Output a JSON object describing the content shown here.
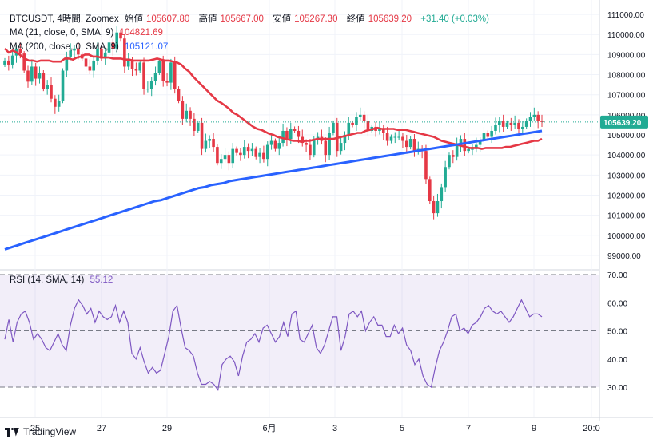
{
  "header": {
    "symbol": "BTCUSDT, 4時間, Zoomex",
    "open_label": "始値",
    "open": "105607.80",
    "high_label": "高値",
    "high": "105667.00",
    "low_label": "安値",
    "low": "105267.30",
    "close_label": "終値",
    "close": "105639.20",
    "change": "+31.40 (+0.03%)"
  },
  "ma21": {
    "label": "MA (21, close, 0, SMA, 9)",
    "value": "104821.69"
  },
  "ma200": {
    "label": "MA (200, close, 0, SMA, 9)",
    "value": "105121.07"
  },
  "rsi": {
    "label": "RSI (14, SMA, 14)",
    "value": "55.12"
  },
  "last_price": "105639.20",
  "footer": {
    "brand": "TradingView"
  },
  "colors": {
    "up": "#22ab94",
    "down": "#e53845",
    "ma21": "#e53845",
    "ma200": "#2962ff",
    "rsi": "#7e57c2"
  },
  "chart_data": [
    {
      "type": "candlestick",
      "price_axis": {
        "min": 99000,
        "max": 111000,
        "step": 1000,
        "tick_labels": [
          "111000.00",
          "110000.00",
          "109000.00",
          "108000.00",
          "107000.00",
          "106000.00",
          "105000.00",
          "104000.00",
          "103000.00",
          "102000.00",
          "101000.00",
          "100000.00",
          "99000.00"
        ]
      },
      "x_tick_labels": [
        "25",
        "27",
        "29",
        "6月",
        "3",
        "5",
        "7",
        "9",
        "20:0"
      ],
      "close": [
        108700,
        108500,
        108950,
        109300,
        109050,
        108200,
        107650,
        108400,
        107800,
        108100,
        107300,
        107500,
        106800,
        106400,
        106700,
        108200,
        108900,
        109200,
        109300,
        109000,
        108800,
        108400,
        108200,
        108700,
        109300,
        108800,
        109100,
        109600,
        109300,
        110100,
        109800,
        108400,
        108700,
        108300,
        108200,
        108600,
        107300,
        107300,
        107700,
        108100,
        108700,
        107700,
        107600,
        108600,
        107300,
        106700,
        105800,
        106200,
        105800,
        105200,
        105600,
        104300,
        104700,
        104800,
        104400,
        103600,
        103800,
        104000,
        103600,
        104300,
        104100,
        104000,
        104400,
        104200,
        104300,
        103900,
        104100,
        103800,
        104500,
        104700,
        104300,
        104600,
        105200,
        104800,
        105300,
        105200,
        104900,
        104600,
        104500,
        104000,
        104800,
        104900,
        104700,
        104000,
        105100,
        105600,
        104200,
        104600,
        105000,
        105600,
        105500,
        105900,
        106000,
        105700,
        105200,
        105400,
        105200,
        105300,
        105100,
        104700,
        104900,
        104900,
        104900,
        104700,
        104400,
        104800,
        104200,
        104300,
        104200,
        102800,
        101700,
        101100,
        101700,
        102400,
        103400,
        104000,
        103900,
        104500,
        104800,
        104200,
        104300,
        104300,
        104500,
        104700,
        105100,
        104900,
        105200,
        105500,
        105700,
        105400,
        105600,
        105500,
        105600,
        105300,
        105400,
        105700,
        105900,
        106000,
        105700,
        105640
      ],
      "ma21": [
        109300,
        109100,
        109200,
        109100,
        108950,
        108800,
        108700,
        108700,
        108650,
        108700,
        108700,
        108700,
        108650,
        108650,
        108650,
        108800,
        108800,
        108750,
        108850,
        108900,
        109000,
        109000,
        108900,
        108900,
        108850,
        108850,
        108850,
        108800,
        108800,
        108800,
        108750,
        108750,
        108700,
        108700,
        108700,
        108700,
        108700,
        108750,
        108800,
        108750,
        108700,
        108700,
        108650,
        108600,
        108500,
        108300,
        108150,
        107900,
        107700,
        107500,
        107300,
        107100,
        106900,
        106700,
        106600,
        106450,
        106300,
        106100,
        106000,
        105850,
        105700,
        105550,
        105400,
        105300,
        105250,
        105150,
        105050,
        105000,
        104900,
        104850,
        104800,
        104750,
        104700,
        104700,
        104650,
        104700,
        104700,
        104750,
        104800,
        104800,
        104800,
        104800,
        104800,
        104850,
        104900,
        104950,
        105000,
        105050,
        105100,
        105100,
        105200,
        105250,
        105300,
        105350,
        105300,
        105300,
        105300,
        105300,
        105250,
        105250,
        105250,
        105200,
        105150,
        105100,
        105050,
        105000,
        104950,
        104900,
        104800,
        104700,
        104650,
        104600,
        104550,
        104500,
        104450,
        104400,
        104350,
        104350,
        104350,
        104300,
        104350,
        104350,
        104350,
        104350,
        104350,
        104400,
        104400,
        104450,
        104500,
        104550,
        104600,
        104650,
        104700,
        104700,
        104800
      ],
      "ma200": [
        99300,
        99400,
        99500,
        99600,
        99700,
        99800,
        99900,
        100000,
        100100,
        100200,
        100300,
        100400,
        100500,
        100600,
        100700,
        100800,
        100900,
        101000,
        101100,
        101200,
        101300,
        101400,
        101500,
        101600,
        101700,
        101750,
        101850,
        101950,
        102050,
        102150,
        102250,
        102350,
        102400,
        102500,
        102550,
        102600,
        102700,
        102750,
        102800,
        102850,
        102900,
        102950,
        103000,
        103050,
        103100,
        103150,
        103200,
        103250,
        103300,
        103350,
        103400,
        103450,
        103500,
        103550,
        103600,
        103650,
        103700,
        103750,
        103800,
        103850,
        103900,
        103950,
        104000,
        104050,
        104100,
        104150,
        104200,
        104250,
        104300,
        104350,
        104400,
        104450,
        104500,
        104550,
        104600,
        104650,
        104700,
        104750,
        104800,
        104850,
        104900,
        104950,
        105000,
        105050,
        105100,
        105150,
        105200
      ]
    },
    {
      "type": "line",
      "name": "RSI (14, SMA, 14)",
      "y_tick_labels": [
        "70.00",
        "60.00",
        "50.00",
        "40.00",
        "30.00"
      ],
      "levels": [
        70,
        50,
        30
      ],
      "values": [
        47,
        54,
        46,
        53,
        56,
        57,
        53,
        47,
        49,
        47,
        44,
        43,
        46,
        49,
        45,
        43,
        52,
        58,
        61,
        59,
        56,
        58,
        53,
        57,
        55,
        54,
        55,
        59,
        53,
        57,
        53,
        42,
        40,
        44,
        39,
        35,
        37,
        35,
        36,
        42,
        48,
        57,
        59,
        51,
        44,
        43,
        41,
        35,
        31,
        31,
        32,
        31,
        29,
        38,
        40,
        41,
        39,
        34,
        41,
        46,
        47,
        49,
        46,
        51,
        52,
        49,
        46,
        48,
        53,
        48,
        56,
        57,
        47,
        46,
        49,
        52,
        44,
        42,
        45,
        50,
        55,
        55,
        43,
        48,
        56,
        57,
        55,
        57,
        50,
        53,
        55,
        52,
        52,
        48,
        48,
        52,
        49,
        51,
        45,
        43,
        38,
        40,
        34,
        31,
        30,
        37,
        43,
        46,
        50,
        55,
        56,
        50,
        51,
        49,
        52,
        53,
        55,
        58,
        59,
        57,
        56,
        57,
        55,
        53,
        55,
        58,
        61,
        58,
        55,
        56,
        56,
        55
      ]
    }
  ]
}
